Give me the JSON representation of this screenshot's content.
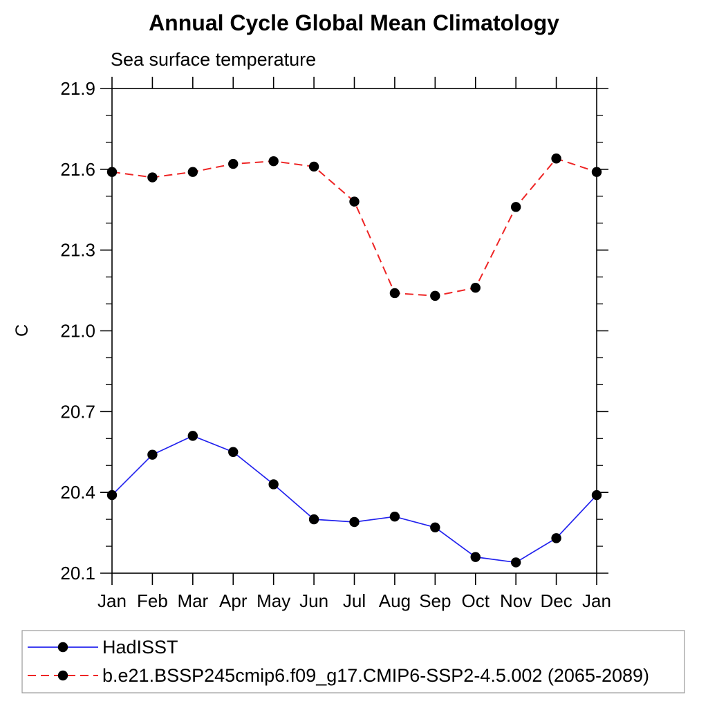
{
  "page": {
    "background_color": "#ffffff",
    "text_color": "#000000"
  },
  "chart_data": {
    "type": "line",
    "title": "Annual Cycle Global Mean Climatology",
    "subtitle": "Sea surface temperature",
    "ylabel": "C",
    "categories": [
      "Jan",
      "Feb",
      "Mar",
      "Apr",
      "May",
      "Jun",
      "Jul",
      "Aug",
      "Sep",
      "Oct",
      "Nov",
      "Dec",
      "Jan"
    ],
    "yaxis": {
      "min": 20.1,
      "max": 21.9,
      "major_step": 0.3,
      "minor_step": 0.1,
      "major_tick_labels": [
        "20.1",
        "20.4",
        "20.7",
        "21.0",
        "21.3",
        "21.6",
        "21.9"
      ]
    },
    "grid": false,
    "axis_color": "#000000",
    "series": [
      {
        "name": "HadISST",
        "color": "#2222ee",
        "line_style": "solid",
        "marker": "filled-circle",
        "marker_color": "#000000",
        "values": [
          20.39,
          20.54,
          20.61,
          20.55,
          20.43,
          20.3,
          20.29,
          20.31,
          20.27,
          20.16,
          20.14,
          20.23,
          20.39
        ]
      },
      {
        "name": "b.e21.BSSP245cmip6.f09_g17.CMIP6-SSP2-4.5.002 (2065-2089)",
        "color": "#ee2525",
        "line_style": "dashed",
        "marker": "filled-circle",
        "marker_color": "#000000",
        "values": [
          21.59,
          21.57,
          21.59,
          21.62,
          21.63,
          21.61,
          21.48,
          21.14,
          21.13,
          21.16,
          21.46,
          21.64,
          21.59
        ]
      }
    ],
    "legend": {
      "position": "bottom-left",
      "border_color": "#999999",
      "background": "#ffffff"
    }
  }
}
